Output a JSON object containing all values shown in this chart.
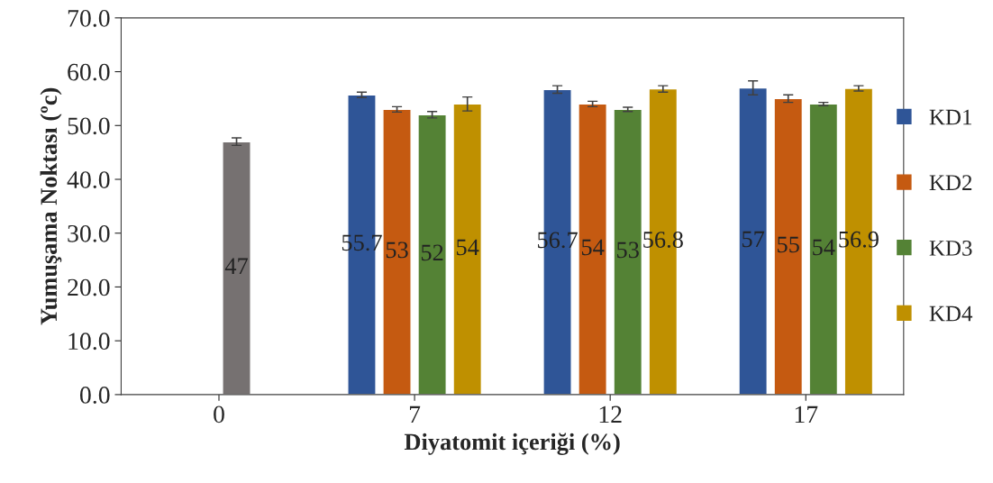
{
  "chart_data": {
    "type": "bar",
    "xlabel": "Diyatomit içeriği (%)",
    "ylabel": "Yumuşama Noktası (ºc)",
    "categories": [
      "0",
      "7",
      "12",
      "17"
    ],
    "series": [
      {
        "name": "KD1",
        "color": "#2f5597",
        "values": [
          null,
          55.7,
          56.7,
          57
        ],
        "errors": [
          null,
          0.5,
          0.7,
          1.3
        ]
      },
      {
        "name": "KD2",
        "color": "#c55a11",
        "values": [
          null,
          53,
          54,
          55
        ],
        "errors": [
          null,
          0.5,
          0.5,
          0.7
        ]
      },
      {
        "name": "KD3",
        "color": "#548235",
        "colors": [
          "#767171",
          "#548235",
          "#548235",
          "#548235"
        ],
        "values": [
          47,
          52,
          53,
          54
        ],
        "errors": [
          0.7,
          0.6,
          0.4,
          0.3
        ]
      },
      {
        "name": "KD4",
        "color": "#bf9000",
        "values": [
          null,
          54,
          56.8,
          56.9
        ],
        "errors": [
          null,
          1.3,
          0.6,
          0.5
        ]
      }
    ],
    "ylim": [
      0,
      70
    ],
    "yticks": [
      {
        "value": 0,
        "label": "0.0"
      },
      {
        "value": 10,
        "label": "10.0"
      },
      {
        "value": 20,
        "label": "20.0"
      },
      {
        "value": 30,
        "label": "30.0"
      },
      {
        "value": 40,
        "label": "40.0"
      },
      {
        "value": 50,
        "label": "50.0"
      },
      {
        "value": 60,
        "label": "60.0"
      },
      {
        "value": 70,
        "label": "70.0"
      }
    ],
    "data_labels": true,
    "legend": "right",
    "grid": false
  }
}
